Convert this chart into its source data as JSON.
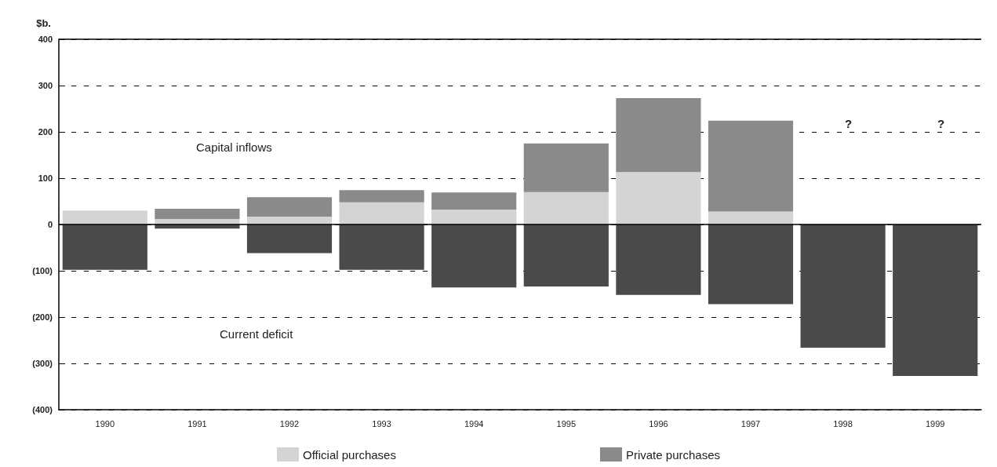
{
  "chart_data": {
    "type": "bar",
    "stacked": true,
    "ylabel": "$b.",
    "categories": [
      "1990",
      "1991",
      "1992",
      "1993",
      "1994",
      "1995",
      "1996",
      "1997",
      "1998",
      "1999"
    ],
    "series": [
      {
        "name": "Official purchases",
        "color": "#d4d4d4",
        "values": [
          30,
          12,
          17,
          48,
          32,
          70,
          113,
          28,
          null,
          null
        ]
      },
      {
        "name": "Private purchases",
        "color": "#8a8a8a",
        "values": [
          null,
          22,
          42,
          26,
          37,
          105,
          160,
          196,
          null,
          null
        ]
      },
      {
        "color": "#4a4a4a",
        "values": [
          -98,
          -9,
          -62,
          -98,
          -136,
          -134,
          -152,
          -172,
          -266,
          -327
        ]
      }
    ],
    "ylim": [
      -400,
      400
    ],
    "yticks": [
      {
        "value": -400,
        "label": "(400)"
      },
      {
        "value": -300,
        "label": "(300)"
      },
      {
        "value": -200,
        "label": "(200)"
      },
      {
        "value": -100,
        "label": "(100)"
      },
      0,
      100,
      200,
      300,
      400
    ],
    "grid": "y",
    "legend": "bottom",
    "annotations": [
      "Capital inflows",
      "Current deficit",
      "?",
      "?"
    ]
  }
}
